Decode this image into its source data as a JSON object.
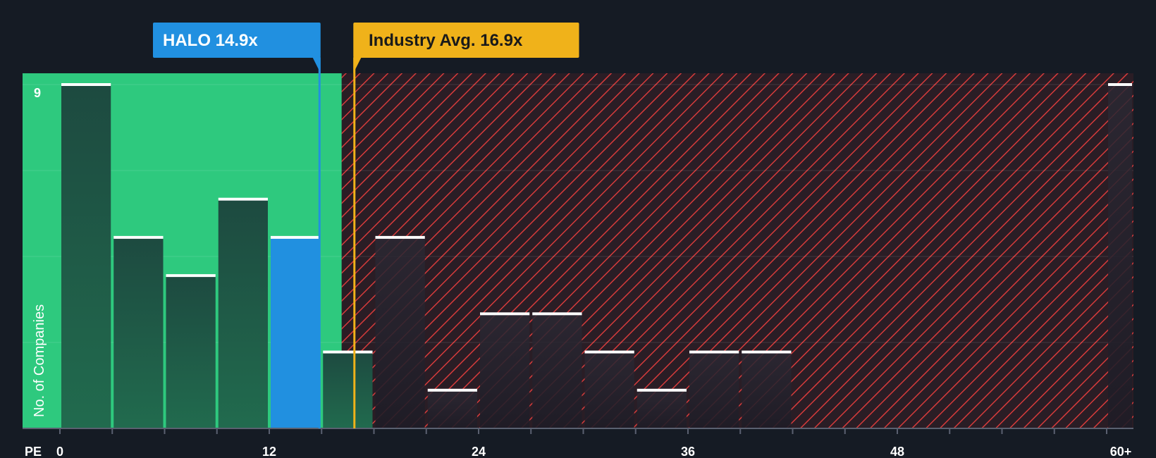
{
  "chart_data": {
    "type": "bar",
    "subject": {
      "ticker": "HALO",
      "label": "HALO 14.9x",
      "value": 14.9
    },
    "industry_avg": {
      "label": "Industry Avg. 16.9x",
      "value": 16.9
    },
    "xlabel": "PE",
    "ylabel": "No. of Companies",
    "x_ticks": [
      "0",
      "12",
      "24",
      "36",
      "48",
      "60+"
    ],
    "y_tick_labels": [
      "9"
    ],
    "ylim": [
      0,
      9
    ],
    "bins": [
      {
        "start": 0,
        "end": 3,
        "value": 9
      },
      {
        "start": 3,
        "end": 6,
        "value": 5
      },
      {
        "start": 6,
        "end": 9,
        "value": 4
      },
      {
        "start": 9,
        "end": 12,
        "value": 6
      },
      {
        "start": 12,
        "end": 15,
        "value": 5,
        "highlight": true
      },
      {
        "start": 15,
        "end": 18,
        "value": 2
      },
      {
        "start": 18,
        "end": 21,
        "value": 5
      },
      {
        "start": 21,
        "end": 24,
        "value": 1
      },
      {
        "start": 24,
        "end": 27,
        "value": 3
      },
      {
        "start": 27,
        "end": 30,
        "value": 3
      },
      {
        "start": 30,
        "end": 33,
        "value": 2
      },
      {
        "start": 33,
        "end": 36,
        "value": 1
      },
      {
        "start": 36,
        "end": 39,
        "value": 2
      },
      {
        "start": 39,
        "end": 42,
        "value": 2
      },
      {
        "start": 60,
        "end": 63,
        "value": 9
      }
    ],
    "grid": true,
    "colors": {
      "background": "#151b24",
      "undervalued_zone": "#2ec97e",
      "overvalued_hatch": "#d63b3b",
      "bar_dark": "#1e4a3d",
      "bar_highlight": "#2190e0",
      "industry_line": "#f0b21a",
      "subject_line": "#2190e0",
      "cap": "#ffffff"
    }
  }
}
